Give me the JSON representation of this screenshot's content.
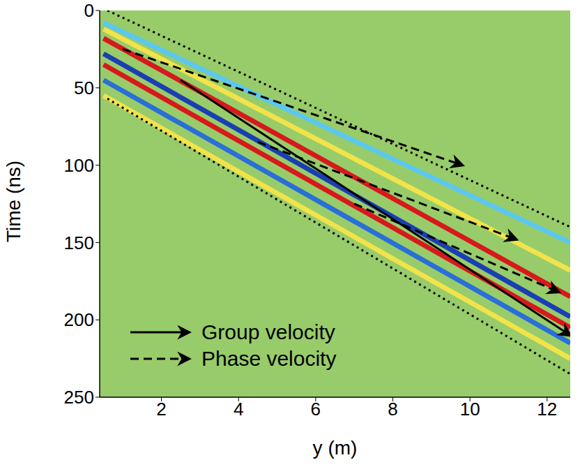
{
  "chart_data": {
    "type": "line",
    "xlabel": "y (m)",
    "ylabel": "Time (ns)",
    "xlim": [
      0.4,
      12.6
    ],
    "xticks": [
      2,
      4,
      6,
      8,
      10,
      12
    ],
    "ylim": [
      0,
      250
    ],
    "yticks": [
      0,
      50,
      100,
      150,
      200,
      250
    ],
    "grid": false,
    "legend": "lower left",
    "series": [
      {
        "name": "Group velocity",
        "color": "#000000",
        "line_style": "solid",
        "marker": "arrow",
        "segments": [
          {
            "x": [
              2.5,
              12.6
            ],
            "values": [
              45,
              210
            ]
          }
        ]
      },
      {
        "name": "Phase velocity",
        "color": "#000000",
        "line_style": "dashed",
        "marker": "arrow",
        "segments": [
          {
            "x": [
              1.0,
              9.8
            ],
            "values": [
              25,
              100
            ]
          },
          {
            "x": [
              4.5,
              11.2
            ],
            "values": [
              85,
              148
            ]
          },
          {
            "x": [
              7.0,
              12.3
            ],
            "values": [
              125,
              182
            ]
          }
        ]
      }
    ],
    "guides": [
      {
        "color": "#000000",
        "line_style": "dotted",
        "x": [
          0.6,
          12.6
        ],
        "values": [
          0,
          140
        ]
      },
      {
        "color": "#000000",
        "line_style": "dotted",
        "x": [
          0.6,
          12.6
        ],
        "values": [
          57,
          235
        ]
      }
    ],
    "wavefield": [
      {
        "color": "#5cc8f0",
        "x": [
          0.5,
          12.6
        ],
        "values": [
          8,
          150
        ]
      },
      {
        "color": "#f2e34a",
        "x": [
          0.5,
          12.6
        ],
        "values": [
          12,
          168
        ]
      },
      {
        "color": "#d7191c",
        "x": [
          0.5,
          12.6
        ],
        "values": [
          18,
          185
        ]
      },
      {
        "color": "#1a3fb3",
        "x": [
          0.5,
          12.6
        ],
        "values": [
          28,
          198
        ]
      },
      {
        "color": "#d7191c",
        "x": [
          0.5,
          12.6
        ],
        "values": [
          35,
          205
        ]
      },
      {
        "color": "#2a6fd8",
        "x": [
          0.5,
          12.6
        ],
        "values": [
          45,
          215
        ]
      },
      {
        "color": "#f2e34a",
        "x": [
          0.5,
          12.6
        ],
        "values": [
          55,
          225
        ]
      }
    ]
  }
}
